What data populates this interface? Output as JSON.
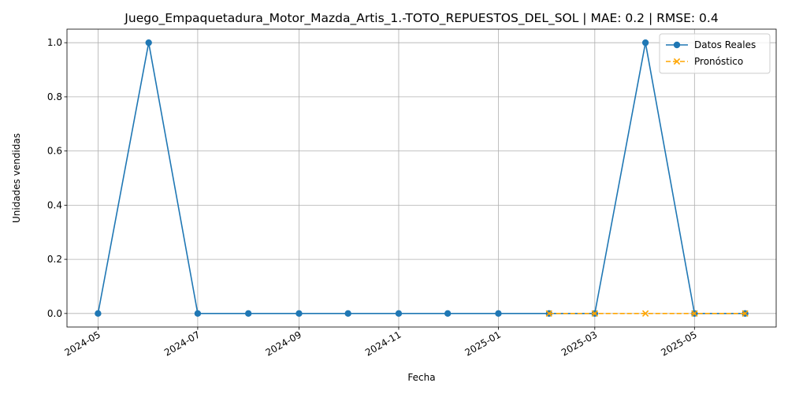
{
  "chart_data": {
    "type": "line",
    "title": "Juego_Empaquetadura_Motor_Mazda_Artis_1.-TOTO_REPUESTOS_DEL_SOL | MAE: 0.2 | RMSE: 0.4",
    "xlabel": "Fecha",
    "ylabel": "Unidades vendidas",
    "xlim": [
      "2024-04-12",
      "2025-06-20"
    ],
    "ylim": [
      -0.05,
      1.05
    ],
    "x_ticks": [
      "2024-05",
      "2024-07",
      "2024-09",
      "2024-11",
      "2025-01",
      "2025-03",
      "2025-05"
    ],
    "y_ticks": [
      "0.0",
      "0.2",
      "0.4",
      "0.6",
      "0.8",
      "1.0"
    ],
    "grid": true,
    "legend_position": "top-right",
    "series": [
      {
        "name": "Datos Reales",
        "color": "#1f77b4",
        "marker": "circle",
        "line_style": "solid",
        "x": [
          "2024-05-01",
          "2024-06-01",
          "2024-07-01",
          "2024-08-01",
          "2024-09-01",
          "2024-10-01",
          "2024-11-01",
          "2024-12-01",
          "2025-01-01",
          "2025-02-01",
          "2025-03-01",
          "2025-04-01",
          "2025-05-01",
          "2025-06-01"
        ],
        "values": [
          0,
          1,
          0,
          0,
          0,
          0,
          0,
          0,
          0,
          0,
          0,
          1,
          0,
          0
        ]
      },
      {
        "name": "Pronóstico",
        "color": "#ffa500",
        "marker": "x",
        "line_style": "dashed",
        "x": [
          "2025-02-01",
          "2025-03-01",
          "2025-04-01",
          "2025-05-01",
          "2025-06-01"
        ],
        "values": [
          0,
          0,
          0,
          0,
          0
        ]
      }
    ]
  }
}
